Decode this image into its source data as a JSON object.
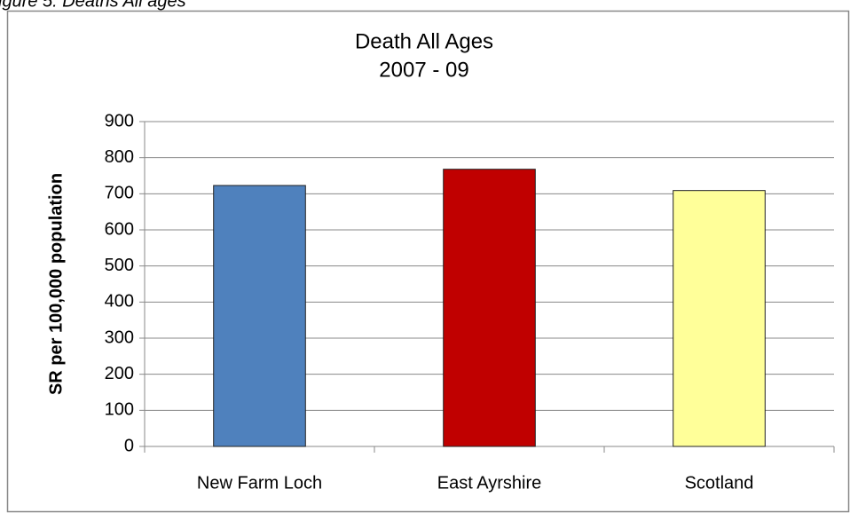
{
  "caption": "igure 5: Deaths All ages",
  "chart_data": {
    "type": "bar",
    "title": "Death All Ages",
    "subtitle": "2007 - 09",
    "y_label": "SR per 100,000 population",
    "categories": [
      "New Farm Loch",
      "East Ayrshire",
      "Scotland"
    ],
    "values": [
      723,
      768,
      709
    ],
    "colors": [
      "#4f81bd",
      "#c00000",
      "#ffff99"
    ],
    "ylim": [
      0,
      900
    ],
    "yticks": [
      0,
      100,
      200,
      300,
      400,
      500,
      600,
      700,
      800,
      900
    ],
    "grid": true
  }
}
